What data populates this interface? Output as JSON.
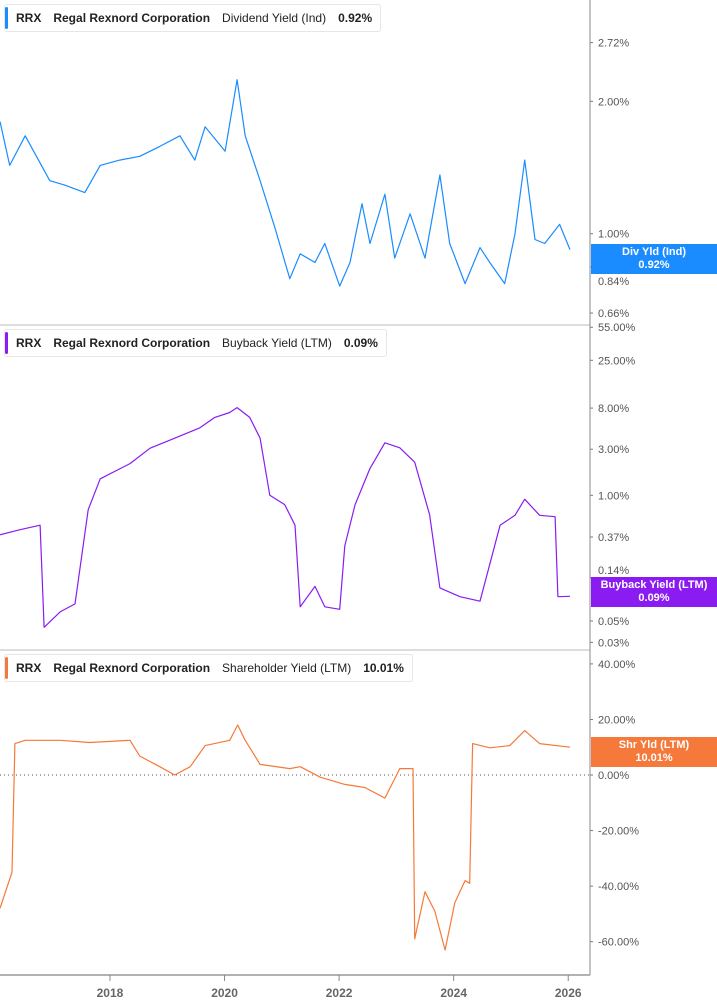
{
  "chart_data": [
    {
      "type": "line",
      "ticker": "RRX",
      "company": "Regal Rexnord Corporation",
      "metric": "Dividend Yield (Ind)",
      "current_value": "0.92%",
      "badge_label": "Div Yld (Ind)",
      "color": "#1a8cff",
      "y_scale": "log",
      "ylim": [
        0.62,
        3.4
      ],
      "y_ticks": [
        "2.72%",
        "2.00%",
        "1.00%",
        "0.84%",
        "0.66%"
      ],
      "y_tick_values": [
        2.72,
        2.0,
        1.0,
        0.84,
        0.66
      ],
      "series": [
        {
          "points": [
            [
              2016.08,
              1.8
            ],
            [
              2016.25,
              1.43
            ],
            [
              2016.52,
              1.67
            ],
            [
              2016.95,
              1.32
            ],
            [
              2017.21,
              1.29
            ],
            [
              2017.56,
              1.24
            ],
            [
              2017.83,
              1.43
            ],
            [
              2018.17,
              1.47
            ],
            [
              2018.52,
              1.5
            ],
            [
              2018.87,
              1.58
            ],
            [
              2019.22,
              1.67
            ],
            [
              2019.48,
              1.47
            ],
            [
              2019.66,
              1.75
            ],
            [
              2020.01,
              1.54
            ],
            [
              2020.22,
              2.24
            ],
            [
              2020.36,
              1.67
            ],
            [
              2020.62,
              1.32
            ],
            [
              2020.88,
              1.03
            ],
            [
              2021.14,
              0.79
            ],
            [
              2021.32,
              0.9
            ],
            [
              2021.58,
              0.86
            ],
            [
              2021.75,
              0.95
            ],
            [
              2022.01,
              0.76
            ],
            [
              2022.19,
              0.86
            ],
            [
              2022.4,
              1.17
            ],
            [
              2022.54,
              0.95
            ],
            [
              2022.8,
              1.23
            ],
            [
              2022.97,
              0.88
            ],
            [
              2023.24,
              1.11
            ],
            [
              2023.5,
              0.88
            ],
            [
              2023.76,
              1.36
            ],
            [
              2023.93,
              0.95
            ],
            [
              2024.2,
              0.77
            ],
            [
              2024.46,
              0.93
            ],
            [
              2024.63,
              0.86
            ],
            [
              2024.89,
              0.77
            ],
            [
              2025.07,
              1.0
            ],
            [
              2025.24,
              1.47
            ],
            [
              2025.42,
              0.97
            ],
            [
              2025.59,
              0.95
            ],
            [
              2025.85,
              1.05
            ],
            [
              2026.03,
              0.92
            ]
          ]
        }
      ]
    },
    {
      "type": "line",
      "ticker": "RRX",
      "company": "Regal Rexnord Corporation",
      "metric": "Buyback Yield (LTM)",
      "current_value": "0.09%",
      "badge_label": "Buyback Yield (LTM)",
      "color": "#8a1cf2",
      "y_scale": "log",
      "ylim": [
        0.025,
        58
      ],
      "y_ticks": [
        "55.00%",
        "25.00%",
        "8.00%",
        "3.00%",
        "1.00%",
        "0.37%",
        "0.14%",
        "0.05%",
        "0.03%"
      ],
      "y_tick_values": [
        55,
        25,
        8,
        3,
        1,
        0.37,
        0.14,
        0.05,
        0.03
      ],
      "series": [
        {
          "points": [
            [
              2016.08,
              0.39
            ],
            [
              2016.43,
              0.44
            ],
            [
              2016.78,
              0.49
            ],
            [
              2016.85,
              0.043
            ],
            [
              2017.13,
              0.062
            ],
            [
              2017.39,
              0.075
            ],
            [
              2017.62,
              0.71
            ],
            [
              2017.83,
              1.48
            ],
            [
              2018.35,
              2.13
            ],
            [
              2018.7,
              3.07
            ],
            [
              2019.13,
              3.9
            ],
            [
              2019.57,
              5.0
            ],
            [
              2019.83,
              6.4
            ],
            [
              2020.09,
              7.2
            ],
            [
              2020.22,
              8.1
            ],
            [
              2020.44,
              6.4
            ],
            [
              2020.62,
              3.9
            ],
            [
              2020.79,
              1.0
            ],
            [
              2021.05,
              0.8
            ],
            [
              2021.23,
              0.49
            ],
            [
              2021.32,
              0.07
            ],
            [
              2021.58,
              0.114
            ],
            [
              2021.75,
              0.07
            ],
            [
              2022.01,
              0.066
            ],
            [
              2022.1,
              0.3
            ],
            [
              2022.28,
              0.8
            ],
            [
              2022.54,
              1.9
            ],
            [
              2022.8,
              3.5
            ],
            [
              2023.06,
              3.1
            ],
            [
              2023.32,
              2.2
            ],
            [
              2023.58,
              0.63
            ],
            [
              2023.76,
              0.11
            ],
            [
              2024.11,
              0.089
            ],
            [
              2024.46,
              0.08
            ],
            [
              2024.81,
              0.49
            ],
            [
              2025.07,
              0.62
            ],
            [
              2025.24,
              0.91
            ],
            [
              2025.5,
              0.62
            ],
            [
              2025.77,
              0.6
            ],
            [
              2025.82,
              0.089
            ],
            [
              2026.03,
              0.09
            ]
          ]
        }
      ]
    },
    {
      "type": "line",
      "ticker": "RRX",
      "company": "Regal Rexnord Corporation",
      "metric": "Shareholder Yield (LTM)",
      "current_value": "10.01%",
      "badge_label": "Shr Yld (LTM)",
      "color": "#f5793a",
      "y_scale": "linear",
      "ylim": [
        -72,
        45
      ],
      "y_ticks": [
        "40.00%",
        "20.00%",
        "0.00%",
        "-20.00%",
        "-40.00%",
        "-60.00%"
      ],
      "y_tick_values": [
        40,
        20,
        0,
        -20,
        -40,
        -60
      ],
      "zero_line": "dotted",
      "series": [
        {
          "points": [
            [
              2016.08,
              -48
            ],
            [
              2016.29,
              -35
            ],
            [
              2016.34,
              11.3
            ],
            [
              2016.52,
              12.5
            ],
            [
              2017.13,
              12.5
            ],
            [
              2017.65,
              11.7
            ],
            [
              2018.35,
              12.5
            ],
            [
              2018.52,
              6.8
            ],
            [
              2018.87,
              3
            ],
            [
              2019.13,
              0
            ],
            [
              2019.4,
              3
            ],
            [
              2019.66,
              10.6
            ],
            [
              2020.09,
              12.5
            ],
            [
              2020.23,
              18
            ],
            [
              2020.36,
              12.5
            ],
            [
              2020.62,
              3.8
            ],
            [
              2021.14,
              2.3
            ],
            [
              2021.32,
              3
            ],
            [
              2021.67,
              -0.8
            ],
            [
              2022.1,
              -3.4
            ],
            [
              2022.45,
              -4.5
            ],
            [
              2022.8,
              -8.3
            ],
            [
              2023.06,
              2.3
            ],
            [
              2023.29,
              2.3
            ],
            [
              2023.32,
              -59
            ],
            [
              2023.5,
              -42
            ],
            [
              2023.67,
              -49
            ],
            [
              2023.85,
              -63
            ],
            [
              2024.02,
              -46
            ],
            [
              2024.2,
              -38
            ],
            [
              2024.28,
              -39
            ],
            [
              2024.33,
              11.3
            ],
            [
              2024.63,
              9.8
            ],
            [
              2024.98,
              10.6
            ],
            [
              2025.24,
              16
            ],
            [
              2025.5,
              11.3
            ],
            [
              2026.03,
              10.01
            ]
          ]
        }
      ]
    }
  ],
  "x_axis": {
    "ticks": [
      "2018",
      "2020",
      "2022",
      "2024",
      "2026"
    ],
    "tick_values": [
      2018,
      2020,
      2022,
      2024,
      2026
    ],
    "range": [
      2016.08,
      2026.38
    ]
  }
}
